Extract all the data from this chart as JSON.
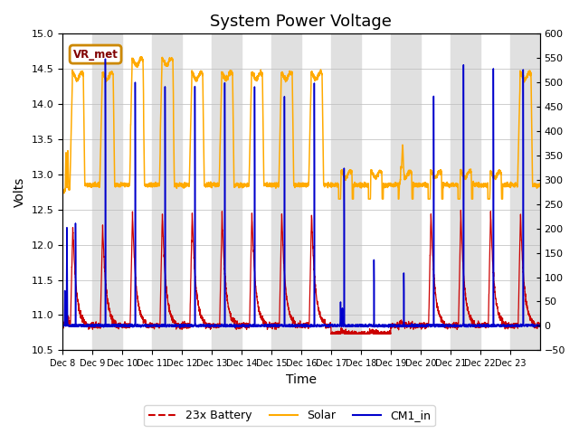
{
  "title": "System Power Voltage",
  "xlabel": "Time",
  "ylabel": "Volts",
  "ylim_left": [
    10.5,
    15.0
  ],
  "ylim_right": [
    -50,
    600
  ],
  "yticks_left": [
    10.5,
    11.0,
    11.5,
    12.0,
    12.5,
    13.0,
    13.5,
    14.0,
    14.5,
    15.0
  ],
  "yticks_right": [
    -50,
    0,
    50,
    100,
    150,
    200,
    250,
    300,
    350,
    400,
    450,
    500,
    550,
    600
  ],
  "xtick_labels": [
    "Dec 8",
    "Dec 9",
    "Dec 10",
    "Dec 11",
    "Dec 12",
    "Dec 13",
    "Dec 14",
    "Dec 15",
    "Dec 16",
    "Dec 17",
    "Dec 18",
    "Dec 19",
    "Dec 20",
    "Dec 21",
    "Dec 22",
    "Dec 23"
  ],
  "color_battery": "#cc0000",
  "color_solar": "#ffaa00",
  "color_cm1": "#0000cc",
  "color_band": "#e0e0e0",
  "vr_met_text": "VR_met",
  "vr_met_box_edge": "#cc8800",
  "legend_labels": [
    "23x Battery",
    "Solar",
    "CM1_in"
  ],
  "title_fontsize": 13,
  "axis_fontsize": 10,
  "tick_fontsize": 8,
  "num_days": 16
}
